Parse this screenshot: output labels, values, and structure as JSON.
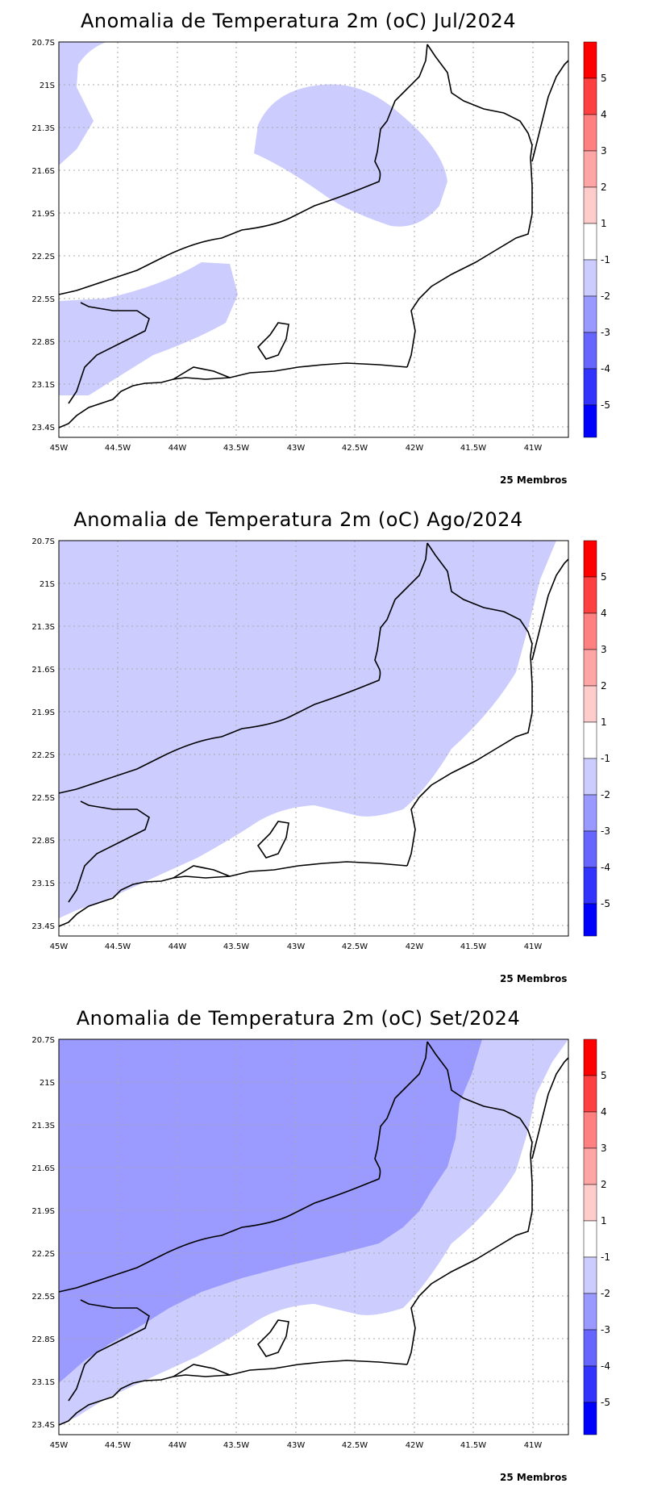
{
  "panels": [
    {
      "title": "Anomalia de Temperatura 2m (oC) Jul/2024",
      "footnote": "25 Membros",
      "lat_labels": [
        "20.7S",
        "21S",
        "21.3S",
        "21.6S",
        "21.9S",
        "22.2S",
        "22.5S",
        "22.8S",
        "23.1S",
        "23.4S"
      ],
      "lon_labels": [
        "45W",
        "44.5W",
        "44W",
        "43.5W",
        "43W",
        "42.5W",
        "42W",
        "41.5W",
        "41W"
      ]
    },
    {
      "title": "Anomalia de Temperatura 2m (oC) Ago/2024",
      "footnote": "25 Membros",
      "lat_labels": [
        "20.7S",
        "21S",
        "21.3S",
        "21.6S",
        "21.9S",
        "22.2S",
        "22.5S",
        "22.8S",
        "23.1S",
        "23.4S"
      ],
      "lon_labels": [
        "45W",
        "44.5W",
        "44W",
        "43.5W",
        "43W",
        "42.5W",
        "42W",
        "41.5W",
        "41W"
      ]
    },
    {
      "title": "Anomalia de Temperatura 2m (oC) Set/2024",
      "footnote": "25 Membros",
      "lat_labels": [
        "20.7S",
        "21S",
        "21.3S",
        "21.6S",
        "21.9S",
        "22.2S",
        "22.5S",
        "22.8S",
        "23.1S",
        "23.4S"
      ],
      "lon_labels": [
        "45W",
        "44.5W",
        "44W",
        "43.5W",
        "43W",
        "42.5W",
        "42W",
        "41.5W",
        "41W"
      ]
    }
  ],
  "colorbar": {
    "labels": [
      "5",
      "4",
      "3",
      "2",
      "1",
      "-1",
      "-2",
      "-3",
      "-4",
      "-5"
    ],
    "colors": [
      "#ff0000",
      "#ff4040",
      "#ff8080",
      "#ffa5a5",
      "#ffcccc",
      "#ffffff",
      "#ccccff",
      "#9999ff",
      "#6666ff",
      "#3333ff",
      "#0000ff"
    ]
  },
  "colors": {
    "light_blue": "#ccccff",
    "medium_blue": "#9a9aff"
  }
}
